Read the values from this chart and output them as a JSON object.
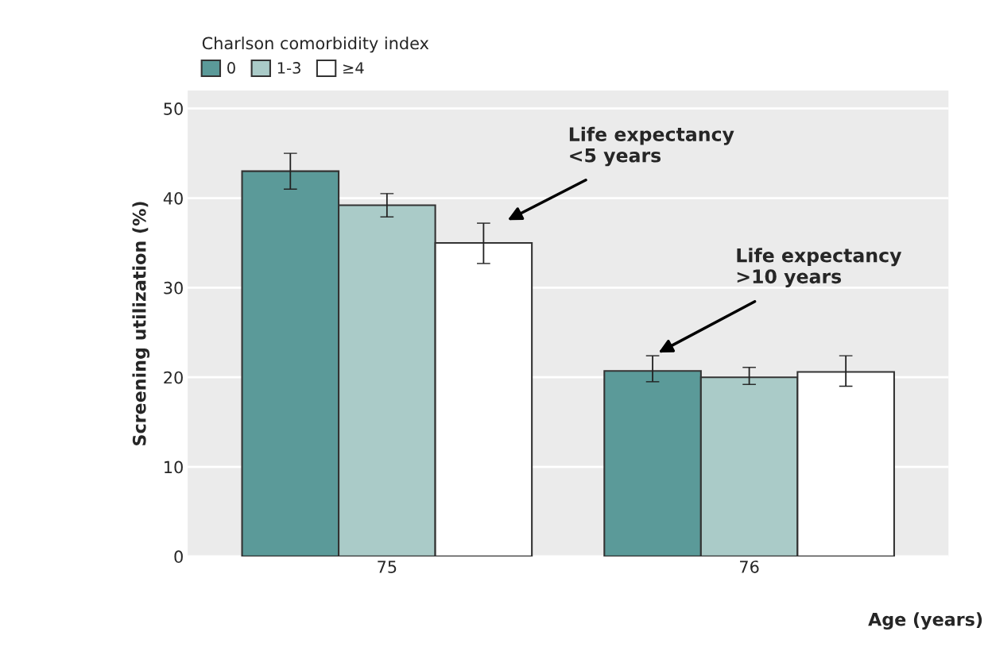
{
  "chart_data": {
    "type": "bar",
    "legend_title": "Charlson comorbidity index",
    "xlabel": "Age (years)",
    "ylabel": "Screening utilization (%)",
    "categories": [
      "75",
      "76"
    ],
    "series": [
      {
        "name": "0",
        "color": "#5b9a99",
        "values": [
          43.0,
          20.7
        ],
        "errors": [
          [
            41.0,
            45.0
          ],
          [
            19.5,
            22.4
          ]
        ]
      },
      {
        "name": "1-3",
        "color": "#aacbc8",
        "values": [
          39.2,
          20.0
        ],
        "errors": [
          [
            37.9,
            40.5
          ],
          [
            19.2,
            21.1
          ]
        ]
      },
      {
        "name": "≥4",
        "color": "#ffffff",
        "values": [
          35.0,
          20.6
        ],
        "errors": [
          [
            32.7,
            37.2
          ],
          [
            19.0,
            22.4
          ]
        ]
      }
    ],
    "annotations": [
      "Life expectancy\n<5 years",
      "Life expectancy\n>10 years"
    ],
    "ylim": [
      0,
      52
    ],
    "yticks": [
      0,
      10,
      20,
      30,
      40,
      50
    ],
    "grid": "y",
    "legend": "top left"
  }
}
